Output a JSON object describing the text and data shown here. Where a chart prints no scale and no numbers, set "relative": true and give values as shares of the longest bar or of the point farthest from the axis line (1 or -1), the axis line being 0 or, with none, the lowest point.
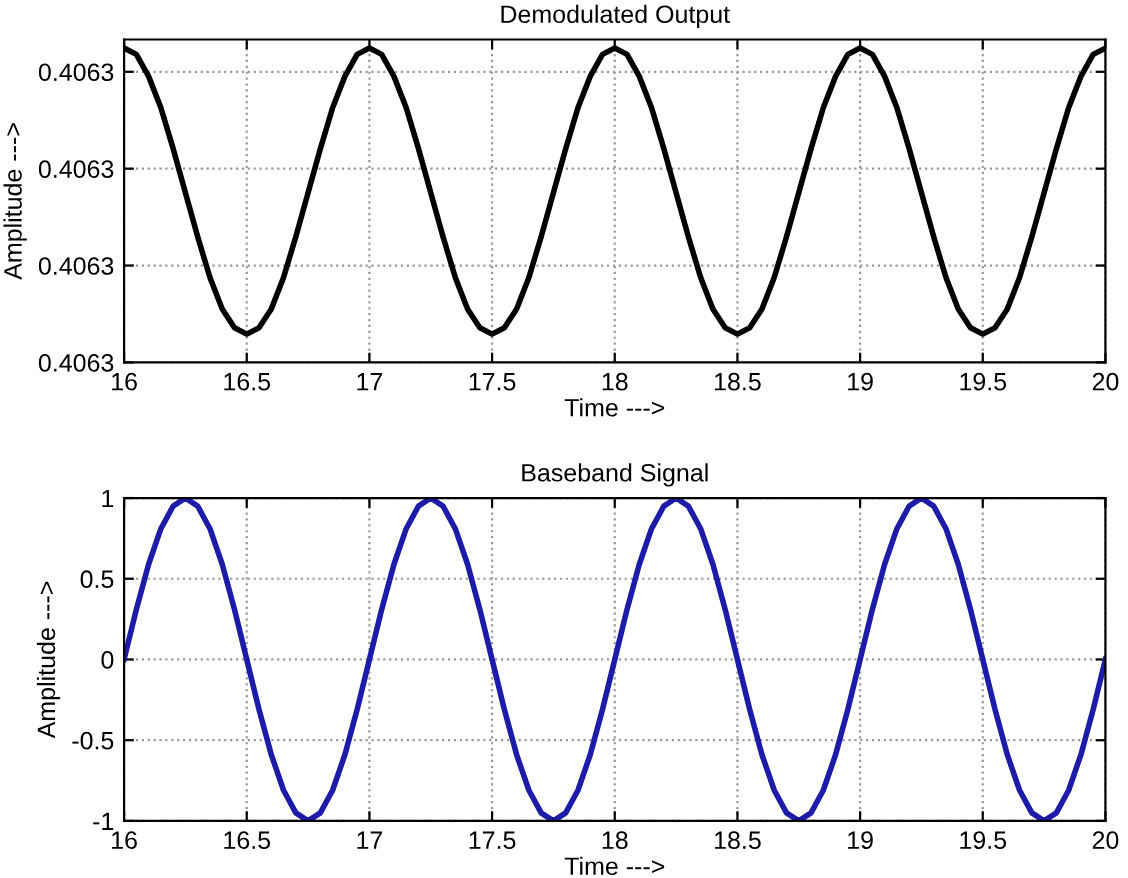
{
  "chart_data": [
    {
      "type": "line",
      "title": "Demodulated Output",
      "xlabel": "Time --->",
      "ylabel": "Amplitude --->",
      "x": [
        16,
        16.05,
        16.1,
        16.15,
        16.2,
        16.25,
        16.3,
        16.35,
        16.4,
        16.45,
        16.5,
        16.55,
        16.6,
        16.65,
        16.7,
        16.75,
        16.8,
        16.85,
        16.9,
        16.95,
        17,
        17.05,
        17.1,
        17.15,
        17.2,
        17.25,
        17.3,
        17.35,
        17.4,
        17.45,
        17.5,
        17.55,
        17.6,
        17.65,
        17.7,
        17.75,
        17.8,
        17.85,
        17.9,
        17.95,
        18,
        18.05,
        18.1,
        18.15,
        18.2,
        18.25,
        18.3,
        18.35,
        18.4,
        18.45,
        18.5,
        18.55,
        18.6,
        18.65,
        18.7,
        18.75,
        18.8,
        18.85,
        18.9,
        18.95,
        19,
        19.05,
        19.1,
        19.15,
        19.2,
        19.25,
        19.3,
        19.35,
        19.4,
        19.45,
        19.5,
        19.55,
        19.6,
        19.65,
        19.7,
        19.75,
        19.8,
        19.85,
        19.9,
        19.95,
        20
      ],
      "series": [
        {
          "color": "#000000",
          "values": [
            1,
            0.98,
            0.91,
            0.81,
            0.68,
            0.54,
            0.4,
            0.27,
            0.17,
            0.11,
            0.09,
            0.11,
            0.17,
            0.27,
            0.4,
            0.54,
            0.68,
            0.81,
            0.91,
            0.98,
            1,
            0.98,
            0.91,
            0.81,
            0.68,
            0.54,
            0.4,
            0.27,
            0.17,
            0.11,
            0.09,
            0.11,
            0.17,
            0.27,
            0.4,
            0.54,
            0.68,
            0.81,
            0.91,
            0.98,
            1,
            0.98,
            0.91,
            0.81,
            0.68,
            0.54,
            0.4,
            0.27,
            0.17,
            0.11,
            0.09,
            0.11,
            0.17,
            0.27,
            0.4,
            0.54,
            0.68,
            0.81,
            0.91,
            0.98,
            1,
            0.98,
            0.91,
            0.81,
            0.68,
            0.54,
            0.4,
            0.27,
            0.17,
            0.11,
            0.09,
            0.11,
            0.17,
            0.27,
            0.4,
            0.54,
            0.68,
            0.81,
            0.91,
            0.98,
            1
          ]
        }
      ],
      "xlim": [
        16,
        20
      ],
      "xticks": [
        16,
        16.5,
        17,
        17.5,
        18,
        18.5,
        19,
        19.5,
        20
      ],
      "relative": true,
      "annotations": [
        "0.4063",
        "0.4063",
        "0.4063",
        "0.4063"
      ],
      "grid": true,
      "line_style": "solid"
    },
    {
      "type": "line",
      "title": "Baseband Signal",
      "xlabel": "Time --->",
      "ylabel": "Amplitude --->",
      "x": [
        16,
        16.05,
        16.1,
        16.15,
        16.2,
        16.25,
        16.3,
        16.35,
        16.4,
        16.45,
        16.5,
        16.55,
        16.6,
        16.65,
        16.7,
        16.75,
        16.8,
        16.85,
        16.9,
        16.95,
        17,
        17.05,
        17.1,
        17.15,
        17.2,
        17.25,
        17.3,
        17.35,
        17.4,
        17.45,
        17.5,
        17.55,
        17.6,
        17.65,
        17.7,
        17.75,
        17.8,
        17.85,
        17.9,
        17.95,
        18,
        18.05,
        18.1,
        18.15,
        18.2,
        18.25,
        18.3,
        18.35,
        18.4,
        18.45,
        18.5,
        18.55,
        18.6,
        18.65,
        18.7,
        18.75,
        18.8,
        18.85,
        18.9,
        18.95,
        19,
        19.05,
        19.1,
        19.15,
        19.2,
        19.25,
        19.3,
        19.35,
        19.4,
        19.45,
        19.5,
        19.55,
        19.6,
        19.65,
        19.7,
        19.75,
        19.8,
        19.85,
        19.9,
        19.95,
        20
      ],
      "series": [
        {
          "color": "#1c1ca8",
          "values": [
            0,
            0.31,
            0.59,
            0.81,
            0.95,
            1,
            0.95,
            0.81,
            0.59,
            0.31,
            0,
            -0.31,
            -0.59,
            -0.81,
            -0.95,
            -1,
            -0.95,
            -0.81,
            -0.59,
            -0.31,
            0,
            0.31,
            0.59,
            0.81,
            0.95,
            1,
            0.95,
            0.81,
            0.59,
            0.31,
            0,
            -0.31,
            -0.59,
            -0.81,
            -0.95,
            -1,
            -0.95,
            -0.81,
            -0.59,
            -0.31,
            0,
            0.31,
            0.59,
            0.81,
            0.95,
            1,
            0.95,
            0.81,
            0.59,
            0.31,
            0,
            -0.31,
            -0.59,
            -0.81,
            -0.95,
            -1,
            -0.95,
            -0.81,
            -0.59,
            -0.31,
            0,
            0.31,
            0.59,
            0.81,
            0.95,
            1,
            0.95,
            0.81,
            0.59,
            0.31,
            0,
            -0.31,
            -0.59,
            -0.81,
            -0.95,
            -1,
            -0.95,
            -0.81,
            -0.59,
            -0.31,
            0
          ]
        }
      ],
      "xlim": [
        16,
        20
      ],
      "xticks": [
        16,
        16.5,
        17,
        17.5,
        18,
        18.5,
        19,
        19.5,
        20
      ],
      "ylim": [
        -1,
        1
      ],
      "yticks": [
        -1,
        -0.5,
        0,
        0.5,
        1
      ],
      "grid": true,
      "line_style": "solid"
    }
  ]
}
